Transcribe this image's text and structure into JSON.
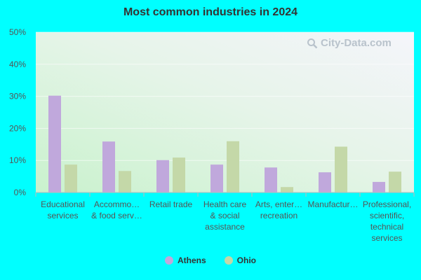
{
  "watermark": "City-Data.com",
  "chart_data": {
    "type": "bar",
    "title": "Most common industries in 2024",
    "categories": [
      [
        "Educational",
        "services"
      ],
      [
        "Accommo…",
        "& food serv…"
      ],
      [
        "Retail trade"
      ],
      [
        "Health care",
        "& social",
        "assistance"
      ],
      [
        "Arts, enter…",
        "recreation"
      ],
      [
        "Manufactur…"
      ],
      [
        "Professional,",
        "scientific,",
        "technical",
        "services"
      ]
    ],
    "series": [
      {
        "name": "Athens",
        "color": "#c0a8dc",
        "values": [
          30.2,
          15.9,
          10.1,
          8.7,
          7.8,
          6.3,
          3.3
        ]
      },
      {
        "name": "Ohio",
        "color": "#c4d8a8",
        "values": [
          8.7,
          6.7,
          10.9,
          16.0,
          1.7,
          14.3,
          6.5
        ]
      }
    ],
    "yticks": [
      "0%",
      "10%",
      "20%",
      "30%",
      "40%",
      "50%"
    ],
    "ylim": [
      0,
      50
    ],
    "grid": true,
    "legend": "bottom-center"
  }
}
